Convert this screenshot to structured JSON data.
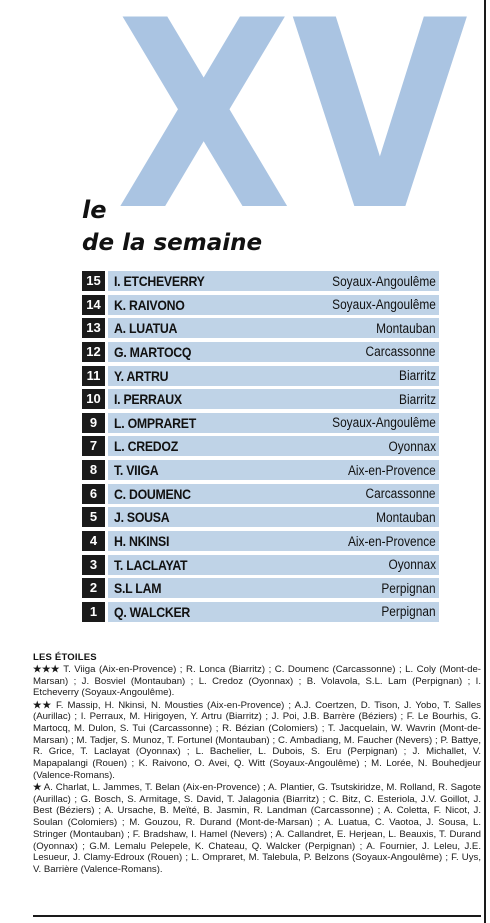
{
  "logo": {
    "text": "XV"
  },
  "title": {
    "line1": "le",
    "line2": "de la semaine"
  },
  "team": [
    {
      "number": "15",
      "name": "I. ETCHEVERRY",
      "club": "Soyaux-Angoulême"
    },
    {
      "number": "14",
      "name": "K. RAIVONO",
      "club": "Soyaux-Angoulême"
    },
    {
      "number": "13",
      "name": "A. LUATUA",
      "club": "Montauban"
    },
    {
      "number": "12",
      "name": "G. MARTOCQ",
      "club": "Carcassonne"
    },
    {
      "number": "11",
      "name": "Y. ARTRU",
      "club": "Biarritz"
    },
    {
      "number": "10",
      "name": "I. PERRAUX",
      "club": "Biarritz"
    },
    {
      "number": "9",
      "name": "L. OMPRARET",
      "club": "Soyaux-Angoulême"
    },
    {
      "number": "7",
      "name": "L. CREDOZ",
      "club": "Oyonnax"
    },
    {
      "number": "8",
      "name": "T. VIIGA",
      "club": "Aix-en-Provence"
    },
    {
      "number": "6",
      "name": "C. DOUMENC",
      "club": "Carcassonne"
    },
    {
      "number": "5",
      "name": "J. SOUSA",
      "club": "Montauban"
    },
    {
      "number": "4",
      "name": "H. NKINSI",
      "club": "Aix-en-Provence"
    },
    {
      "number": "3",
      "name": "T. LACLAYAT",
      "club": "Oyonnax"
    },
    {
      "number": "2",
      "name": "S.L LAM",
      "club": "Perpignan"
    },
    {
      "number": "1",
      "name": "Q. WALCKER",
      "club": "Perpignan"
    }
  ],
  "stars": {
    "heading": "LES ÉTOILES",
    "three": {
      "marks": "★★★",
      "text": "T. Viiga (Aix-en-Provence) ; R. Lonca (Biarritz) ; C. Doumenc (Carcassonne) ; L. Coly (Mont-de-Marsan) ; J. Bosviel (Montauban) ; L. Credoz (Oyonnax) ; B. Volavola, S.L. Lam (Perpignan) ; I. Etcheverry (Soyaux-Angoulême)."
    },
    "two": {
      "marks": "★★",
      "text": "F. Massip, H. Nkinsi, N. Mousties (Aix-en-Provence) ; A.J. Coertzen, D. Tison, J. Yobo, T. Salles (Aurillac) ; I. Perraux, M. Hirigoyen, Y. Artru (Biarritz) ; J. Poi, J.B. Barrère (Béziers) ; F. Le Bourhis, G. Martocq, M. Dulon, S. Tui (Carcassonne) ; R. Bézian (Colomiers) ; T. Jacquelain, W. Wavrin (Mont-de-Marsan) ; M. Tadjer, S. Munoz, T. Fortunel (Montauban) ; C. Ambadiang, M. Faucher (Nevers) ; P. Battye, R. Grice, T. Laclayat (Oyonnax) ; L. Bachelier, L. Dubois, S. Eru (Perpignan) ; J. Michallet, V. Mapapalangi (Rouen) ; K. Raivono, O. Avei, Q. Witt (Soyaux-Angoulême) ; M. Lorée, N. Bouhedjeur (Valence-Romans)."
    },
    "one": {
      "marks": "★",
      "text": "A. Charlat, L. Jammes, T. Belan (Aix-en-Provence) ; A. Plantier, G. Tsutskiridze, M. Rolland, R. Sagote (Aurillac) ; G. Bosch, S. Armitage, S. David, T. Jalagonia (Biarritz) ; C. Bitz, C. Esteriola, J.V. Goillot, J. Best (Béziers) ; A. Ursache, B. Meïté, B. Jasmin, R. Landman (Carcassonne) ; A. Coletta, F. Nicot, J. Soulan (Colomiers) ; M. Gouzou, R. Durand (Mont-de-Marsan) ; A. Luatua, C. Vaotoa, J. Sousa, L. Stringer (Montauban) ; F. Bradshaw, I. Hamel (Nevers) ; A. Callandret, E. Herjean, L. Beauxis, T. Durand (Oyonnax) ; G.M. Lemalu Pelepele, K. Chateau, Q. Walcker (Perpignan) ; A. Fournier, J. Leleu, J.E. Lesueur, J. Clamy-Edroux (Rouen) ; L. Ompraret, M. Talebula, P. Belzons (Soyaux-Angoulême) ; F. Uys, V. Barrière (Valence-Romans)."
    }
  },
  "colors": {
    "logo_blue": "#aac4e2",
    "row_bar": "#bfd3e7",
    "number_box": "#1a1a1a"
  }
}
